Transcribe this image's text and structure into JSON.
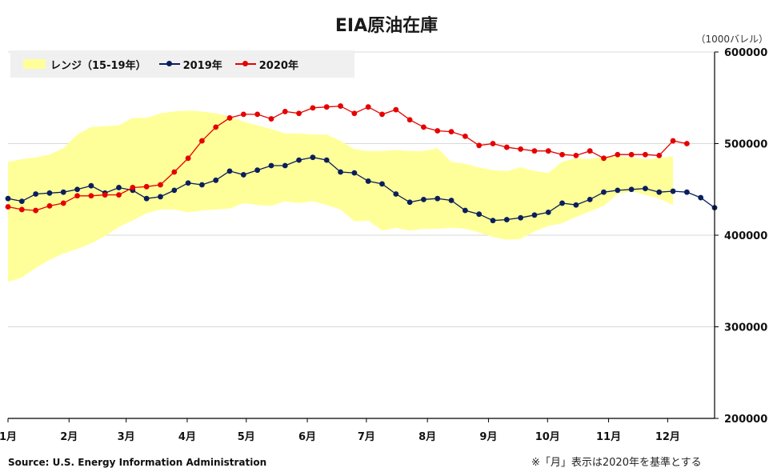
{
  "title": "EIA原油在庫",
  "unit_label": "（1000バレル）",
  "source": "Source: U.S. Energy Information Administration",
  "note": "※「月」表示は2020年を基準とする",
  "legend": {
    "range_label": "レンジ（15-19年）",
    "s2019_label": "2019年",
    "s2020_label": "2020年"
  },
  "colors": {
    "range": "#ffff99",
    "s2019": "#0b1f5c",
    "s2020": "#e60000",
    "grid": "#d9d9d9"
  },
  "chart_data": {
    "type": "line",
    "title": "EIA原油在庫",
    "ylabel": "（1000バレル）",
    "ylim": [
      200000,
      600000
    ],
    "y_ticks": [
      "200000",
      "300000",
      "400000",
      "500000",
      "600000"
    ],
    "x_ticks": [
      "1月",
      "2月",
      "3月",
      "4月",
      "5月",
      "6月",
      "7月",
      "8月",
      "9月",
      "10月",
      "11月",
      "12月"
    ],
    "y_axis_position": "right",
    "grid": true,
    "legend_placement": "top-left",
    "range_band": {
      "name": "レンジ（15-19年）",
      "upper": [
        480000,
        483000,
        485000,
        488000,
        495000,
        510000,
        518000,
        519000,
        520000,
        528000,
        528000,
        533000,
        535000,
        536000,
        535000,
        533000,
        530000,
        524000,
        520000,
        516000,
        511000,
        511000,
        510000,
        510000,
        503000,
        494000,
        492000,
        492000,
        493000,
        492000,
        492000,
        495000,
        480000,
        478000,
        474000,
        471000,
        470000,
        474000,
        470000,
        468000,
        480000,
        484000,
        483000,
        486000,
        486000,
        485000,
        483000,
        484000,
        486000
      ],
      "lower": [
        349000,
        354000,
        364000,
        373000,
        380000,
        385000,
        391000,
        399000,
        409000,
        416000,
        424000,
        428000,
        428000,
        425000,
        427000,
        428000,
        429000,
        435000,
        433000,
        432000,
        437000,
        435000,
        437000,
        433000,
        428000,
        415000,
        416000,
        405000,
        408000,
        405000,
        407000,
        407000,
        408000,
        407000,
        403000,
        398000,
        395000,
        396000,
        404000,
        410000,
        413000,
        420000,
        426000,
        432000,
        445000,
        448000,
        444000,
        440000,
        433000
      ]
    },
    "series": [
      {
        "name": "2019年",
        "values": [
          440000,
          437000,
          445000,
          446000,
          447000,
          450000,
          454000,
          446000,
          452000,
          449000,
          440000,
          442000,
          449000,
          457000,
          455000,
          460000,
          470000,
          466000,
          471000,
          476000,
          476000,
          482000,
          485000,
          482000,
          469000,
          468000,
          459000,
          456000,
          445000,
          436000,
          439000,
          440000,
          438000,
          427000,
          423000,
          416000,
          417000,
          419000,
          422000,
          425000,
          435000,
          433000,
          439000,
          447000,
          449000,
          450000,
          451000,
          447000,
          448000,
          447000,
          441000,
          430000
        ]
      },
      {
        "name": "2020年",
        "values": [
          431000,
          428000,
          427000,
          432000,
          435000,
          443000,
          443000,
          444000,
          444000,
          452000,
          453000,
          455000,
          469000,
          484000,
          503000,
          518000,
          528000,
          532000,
          532000,
          527000,
          535000,
          533000,
          539000,
          540000,
          541000,
          533000,
          540000,
          532000,
          537000,
          526000,
          518000,
          514000,
          513000,
          508000,
          498000,
          500000,
          496000,
          494000,
          492000,
          492000,
          488000,
          487000,
          492000,
          484000,
          488000,
          488000,
          488000,
          487000,
          503000,
          500000
        ]
      }
    ]
  }
}
